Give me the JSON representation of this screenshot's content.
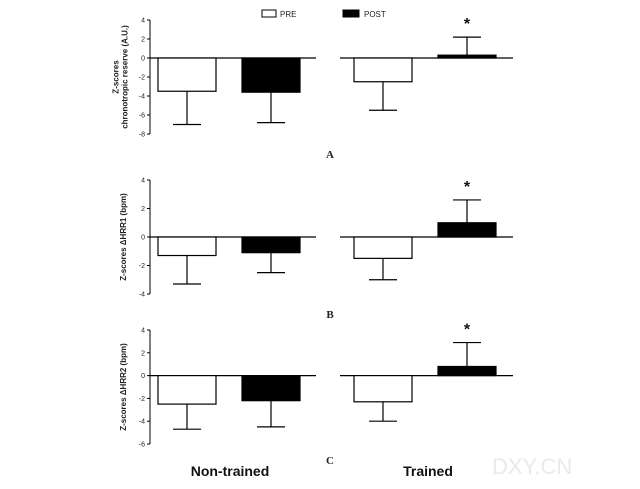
{
  "legend": {
    "pre_label": "PRE",
    "post_label": "POST"
  },
  "groups": [
    "Non-trained",
    "Trained"
  ],
  "watermark": "DXY.CN",
  "chart_data": [
    {
      "type": "bar",
      "panel": "A",
      "ylabel_line1": "Z-scores",
      "ylabel_line2": "chronotropic reserve (A.U.)",
      "ylim": [
        -8,
        4
      ],
      "yticks": [
        4,
        2,
        0,
        -2,
        -4,
        -6,
        -8
      ],
      "categories": [
        "Non-trained",
        "Trained"
      ],
      "series": [
        {
          "name": "PRE",
          "fill": "#ffffff",
          "values": [
            -3.5,
            -2.5
          ],
          "error": [
            3.5,
            3.0
          ]
        },
        {
          "name": "POST",
          "fill": "#000000",
          "values": [
            -3.6,
            0.3
          ],
          "error": [
            3.2,
            1.9
          ]
        }
      ],
      "significance": [
        {
          "category": "Trained",
          "series": "POST",
          "mark": "*"
        }
      ]
    },
    {
      "type": "bar",
      "panel": "B",
      "ylabel_line1": "Z-scores ΔHRR1 (bpm)",
      "ylabel_line2": "",
      "ylim": [
        -4,
        4
      ],
      "yticks": [
        4,
        2,
        0,
        -2,
        -4
      ],
      "categories": [
        "Non-trained",
        "Trained"
      ],
      "series": [
        {
          "name": "PRE",
          "fill": "#ffffff",
          "values": [
            -1.3,
            -1.5
          ],
          "error": [
            2.0,
            1.5
          ]
        },
        {
          "name": "POST",
          "fill": "#000000",
          "values": [
            -1.1,
            1.0
          ],
          "error": [
            1.4,
            1.6
          ]
        }
      ],
      "significance": [
        {
          "category": "Trained",
          "series": "POST",
          "mark": "*"
        }
      ]
    },
    {
      "type": "bar",
      "panel": "C",
      "ylabel_line1": "Z-scores ΔHRR2 (bpm)",
      "ylabel_line2": "",
      "ylim": [
        -6,
        4
      ],
      "yticks": [
        4,
        2,
        0,
        -2,
        -4,
        -6
      ],
      "categories": [
        "Non-trained",
        "Trained"
      ],
      "series": [
        {
          "name": "PRE",
          "fill": "#ffffff",
          "values": [
            -2.5,
            -2.3
          ],
          "error": [
            2.2,
            1.7
          ]
        },
        {
          "name": "POST",
          "fill": "#000000",
          "values": [
            -2.2,
            0.8
          ],
          "error": [
            2.3,
            2.1
          ]
        }
      ],
      "significance": [
        {
          "category": "Trained",
          "series": "POST",
          "mark": "*"
        }
      ]
    }
  ]
}
